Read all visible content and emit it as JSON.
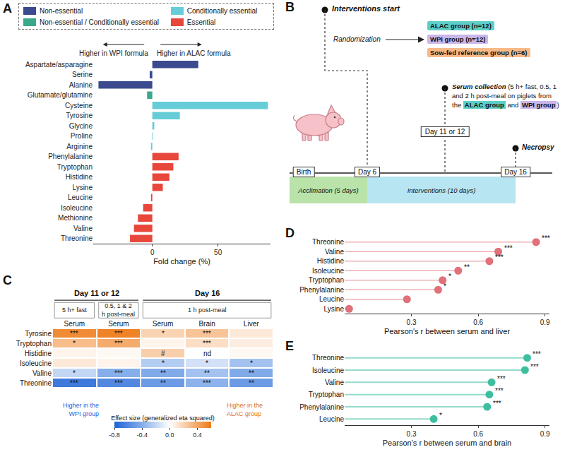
{
  "chart_data": [
    {
      "panel": "A",
      "type": "bar",
      "orientation": "horizontal",
      "legend": "top",
      "categories": [
        "Aspartate/asparagine",
        "Serine",
        "Alanine",
        "Glutamate/glutamine",
        "Cysteine",
        "Tyrosine",
        "Glycine",
        "Proline",
        "Arginine",
        "Phenylalanine",
        "Tryptophan",
        "Histidine",
        "Lysine",
        "Leucine",
        "Isoleucine",
        "Methionine",
        "Valine",
        "Threonine"
      ],
      "series": [
        {
          "name": "Non-essential",
          "color": "#3b4a8e",
          "values": [
            35,
            -2,
            -41,
            null,
            null,
            null,
            null,
            null,
            null,
            null,
            null,
            null,
            null,
            null,
            null,
            null,
            null,
            null
          ]
        },
        {
          "name": "Non-essential / Conditionally essential",
          "color": "#3aa88a",
          "values": [
            null,
            null,
            null,
            -4,
            null,
            null,
            null,
            null,
            null,
            null,
            null,
            null,
            null,
            null,
            null,
            null,
            null,
            null
          ]
        },
        {
          "name": "Conditionally essential",
          "color": "#66cdd8",
          "values": [
            null,
            null,
            null,
            null,
            88,
            21,
            1.5,
            0.5,
            -1,
            null,
            null,
            null,
            null,
            null,
            null,
            null,
            null,
            null
          ]
        },
        {
          "name": "Essential",
          "color": "#e8473b",
          "values": [
            null,
            null,
            null,
            null,
            null,
            null,
            null,
            null,
            null,
            20,
            16,
            13,
            8,
            -1,
            -7,
            -11,
            -14,
            -17
          ]
        }
      ],
      "xlim": [
        -45,
        90
      ],
      "xticks": [
        0,
        50
      ],
      "xlabel": "Fold change (%)",
      "annotations": [
        "Higher in WPI formula",
        "Higher in ALAC formula"
      ]
    },
    {
      "panel": "C",
      "type": "heatmap",
      "columns": [
        {
          "group": "Day 11 or 12",
          "condition": "5 h+ fast",
          "tissue": "Serum"
        },
        {
          "group": "Day 11 or 12",
          "condition": "0.5, 1 & 2 h post-meal",
          "tissue": "Serum"
        },
        {
          "group": "Day 16",
          "condition": "1 h post-meal",
          "tissue": "Serum"
        },
        {
          "group": "Day 16",
          "condition": "1 h post-meal",
          "tissue": "Brain"
        },
        {
          "group": "Day 16",
          "condition": "1 h post-meal",
          "tissue": "Liver"
        }
      ],
      "rows": [
        "Tyrosine",
        "Tryptophan",
        "Histidine",
        "Isoleucine",
        "Valine",
        "Threonine"
      ],
      "cells": [
        [
          0.52,
          0.56,
          0.2,
          0.27,
          0.1
        ],
        [
          0.3,
          0.38,
          0.05,
          0.15,
          0.08
        ],
        [
          0.05,
          0.03,
          0.22,
          null,
          0.03
        ],
        [
          0.1,
          0.05,
          -0.25,
          -0.15,
          -0.3
        ],
        [
          -0.2,
          -0.4,
          -0.42,
          -0.3,
          -0.42
        ],
        [
          -0.68,
          -0.6,
          -0.5,
          -0.38,
          -0.5
        ]
      ],
      "cell_labels": [
        [
          "***",
          "***",
          "*",
          "***",
          null
        ],
        [
          "*",
          "***",
          null,
          "***",
          null
        ],
        [
          null,
          null,
          "#",
          "nd",
          null
        ],
        [
          null,
          null,
          "*",
          "*",
          "*"
        ],
        [
          "*",
          "***",
          "**",
          "**",
          "**"
        ],
        [
          "***",
          "***",
          "**",
          "***",
          "**"
        ]
      ],
      "zlim": [
        -0.8,
        0.6
      ],
      "zticks": [
        -0.8,
        -0.4,
        {
          "value": 0,
          "label": "0.0"
        },
        0.4
      ],
      "colorbar_title": "Effect size (generalized eta squared)",
      "low_label": "Higher in the WPI group",
      "high_label": "Higher in the ALAC group"
    },
    {
      "panel": "D",
      "type": "lollipop",
      "categories": [
        "Threonine",
        "Valine",
        "Histidine",
        "Isoleucine",
        "Tryptophan",
        "Phenylalanine",
        "Leucine",
        "Lysine"
      ],
      "values": [
        0.86,
        0.69,
        0.65,
        0.51,
        0.44,
        0.42,
        0.28,
        0.02
      ],
      "significance": [
        "***",
        "***",
        "***",
        "**",
        "*",
        "*",
        null,
        null
      ],
      "color": "#e0707a",
      "xlim": [
        0,
        0.92
      ],
      "xticks": [
        0.3,
        0.6,
        0.9
      ],
      "xlabel": "Pearson's r between serum and liver"
    },
    {
      "panel": "E",
      "type": "lollipop",
      "categories": [
        "Threonine",
        "Isoleucine",
        "Valine",
        "Tryptophan",
        "Phenylalanine",
        "Leucine"
      ],
      "values": [
        0.82,
        0.81,
        0.66,
        0.65,
        0.64,
        0.4
      ],
      "significance": [
        "***",
        "***",
        "***",
        "***",
        "***",
        "*"
      ],
      "color": "#3dbf9f",
      "xlim": [
        0,
        0.92
      ],
      "xticks": [
        0.3,
        0.6,
        0.9
      ],
      "xlabel": "Pearson's r between serum and brain"
    }
  ],
  "diagram": {
    "panel": "B",
    "start": {
      "label": "Interventions start",
      "randomization": "Randomization",
      "groups": [
        {
          "label": "ALAC group (n=12)",
          "color": "#5ccfc8"
        },
        {
          "label": "WPI group (n=12)",
          "color": "#c9b6ea"
        },
        {
          "label": "Sow-fed reference group (n=6)",
          "color": "#f7b987"
        }
      ]
    },
    "serum_collection": {
      "title": "Serum collection",
      "text": "(5 h+ fast, 0.5, 1 and 2 h post-meal on piglets from the ALAC group and WPI group)",
      "highlights": [
        "ALAC group",
        "WPI group"
      ],
      "day": "Day 11 or 12"
    },
    "necropsy": "Necropsy",
    "timeline": {
      "marks": [
        "Birth",
        "Day 6",
        "Day 16"
      ],
      "phases": [
        {
          "label": "Acclimation (5 days)",
          "color": "#b9e3a9"
        },
        {
          "label": "Interventions (10 days)",
          "color": "#b7e5f2"
        }
      ]
    }
  }
}
